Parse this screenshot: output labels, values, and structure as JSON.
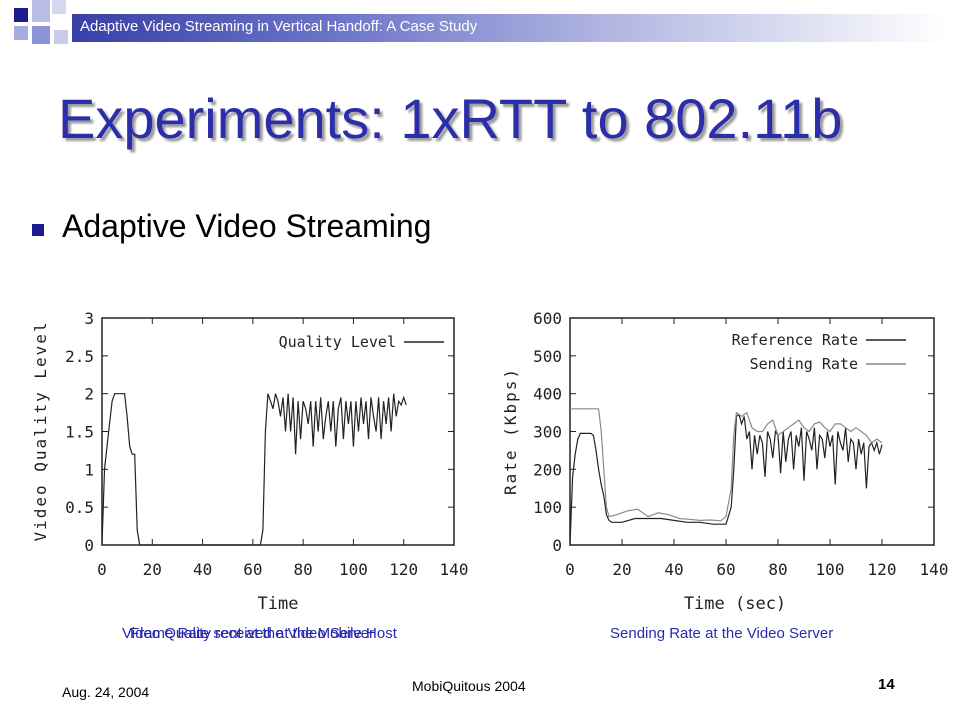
{
  "header": {
    "title": "Adaptive Video Streaming in Vertical Handoff: A Case Study"
  },
  "slide": {
    "title": "Experiments: 1xRTT to 802.11b",
    "bullet": "Adaptive Video Streaming",
    "caption_left_a": "Video Quality received at the Mobile Host",
    "caption_left_b": "Frame Rate sent at the Video Server",
    "caption_right": "Sending Rate at the Video Server"
  },
  "footer": {
    "date": "Aug. 24,  2004",
    "center": "MobiQuitous 2004",
    "page": "14"
  },
  "chart_data": [
    {
      "type": "line",
      "xlabel": "Time",
      "ylabel": "Video Quality Level",
      "xlim": [
        0,
        140
      ],
      "ylim": [
        0,
        3
      ],
      "xticks": [
        "0",
        "20",
        "40",
        "60",
        "80",
        "100",
        "120",
        "140"
      ],
      "yticks": [
        "0",
        "0.5",
        "1",
        "1.5",
        "2",
        "2.5",
        "3"
      ],
      "legend_position": "top-right",
      "series": [
        {
          "name": "Quality Level",
          "color": "#222222",
          "x": [
            0,
            1,
            2,
            3,
            4,
            5,
            6,
            7,
            8,
            9,
            10,
            11,
            12,
            13,
            14,
            15,
            16,
            63,
            64,
            65,
            66,
            67,
            68,
            69,
            70,
            71,
            72,
            73,
            74,
            75,
            76,
            77,
            78,
            79,
            80,
            81,
            82,
            83,
            84,
            85,
            86,
            87,
            88,
            89,
            90,
            91,
            92,
            93,
            94,
            95,
            96,
            97,
            98,
            99,
            100,
            101,
            102,
            103,
            104,
            105,
            106,
            107,
            108,
            109,
            110,
            111,
            112,
            113,
            114,
            115,
            116,
            117,
            118,
            119,
            120,
            121
          ],
          "y": [
            0,
            1,
            1.3,
            1.6,
            1.9,
            2,
            2,
            2,
            2,
            2,
            1.7,
            1.3,
            1.2,
            1.2,
            0.2,
            0,
            0,
            0,
            0.2,
            1.5,
            2,
            1.9,
            1.8,
            2,
            1.9,
            1.7,
            1.95,
            1.5,
            2,
            1.5,
            1.95,
            1.2,
            1.9,
            1.4,
            1.9,
            1.8,
            1.6,
            1.9,
            1.3,
            1.9,
            1.5,
            1.95,
            1.4,
            1.7,
            1.9,
            1.5,
            1.9,
            1.3,
            1.8,
            1.95,
            1.4,
            1.9,
            1.6,
            1.9,
            1.3,
            1.9,
            1.5,
            1.95,
            1.6,
            1.9,
            1.4,
            1.95,
            1.7,
            1.5,
            1.95,
            1.4,
            1.9,
            1.6,
            1.95,
            1.5,
            2,
            1.7,
            1.9,
            1.85,
            1.95,
            1.85
          ]
        }
      ]
    },
    {
      "type": "line",
      "xlabel": "Time (sec)",
      "ylabel": "Rate (Kbps)",
      "xlim": [
        0,
        140
      ],
      "ylim": [
        0,
        600
      ],
      "xticks": [
        "0",
        "20",
        "40",
        "60",
        "80",
        "100",
        "120",
        "140"
      ],
      "yticks": [
        "0",
        "100",
        "200",
        "300",
        "400",
        "500",
        "600"
      ],
      "legend_position": "top-right",
      "series": [
        {
          "name": "Reference Rate",
          "color": "#222222",
          "x": [
            0,
            1,
            2,
            3,
            4,
            5,
            6,
            7,
            8,
            9,
            10,
            11,
            12,
            13,
            14,
            15,
            16,
            20,
            25,
            30,
            35,
            40,
            45,
            50,
            55,
            60,
            62,
            63,
            64,
            65,
            66,
            67,
            68,
            69,
            70,
            71,
            72,
            73,
            74,
            75,
            76,
            77,
            78,
            79,
            80,
            81,
            82,
            83,
            84,
            85,
            86,
            87,
            88,
            89,
            90,
            91,
            92,
            93,
            94,
            95,
            96,
            97,
            98,
            99,
            100,
            101,
            102,
            103,
            104,
            105,
            106,
            107,
            108,
            109,
            110,
            111,
            112,
            113,
            114,
            115,
            116,
            117,
            118,
            119,
            120
          ],
          "y": [
            0,
            180,
            240,
            280,
            295,
            295,
            295,
            295,
            295,
            290,
            250,
            200,
            160,
            130,
            80,
            65,
            60,
            60,
            70,
            70,
            70,
            65,
            60,
            60,
            55,
            55,
            100,
            200,
            340,
            345,
            320,
            340,
            280,
            300,
            200,
            290,
            240,
            290,
            270,
            180,
            300,
            280,
            230,
            300,
            290,
            190,
            300,
            220,
            280,
            300,
            200,
            290,
            260,
            310,
            170,
            300,
            280,
            250,
            310,
            200,
            290,
            280,
            230,
            300,
            260,
            290,
            160,
            300,
            270,
            250,
            310,
            220,
            280,
            270,
            200,
            280,
            240,
            270,
            150,
            260,
            270,
            250,
            270,
            240,
            265
          ]
        },
        {
          "name": "Sending Rate",
          "color": "#8a8a8a",
          "x": [
            0,
            1,
            4,
            8,
            11,
            12,
            13,
            14,
            15,
            18,
            22,
            26,
            30,
            34,
            38,
            42,
            46,
            50,
            54,
            58,
            60,
            62,
            63,
            64,
            66,
            68,
            70,
            72,
            74,
            76,
            78,
            80,
            82,
            84,
            86,
            88,
            90,
            92,
            94,
            96,
            98,
            100,
            102,
            104,
            106,
            108,
            110,
            112,
            114,
            116,
            118,
            120
          ],
          "y": [
            360,
            360,
            360,
            360,
            360,
            300,
            200,
            100,
            75,
            80,
            90,
            95,
            75,
            85,
            80,
            70,
            68,
            65,
            66,
            64,
            75,
            150,
            290,
            350,
            340,
            350,
            310,
            300,
            300,
            320,
            330,
            290,
            300,
            310,
            320,
            330,
            310,
            300,
            320,
            325,
            310,
            300,
            320,
            320,
            310,
            300,
            310,
            300,
            290,
            270,
            280,
            270
          ]
        }
      ]
    }
  ]
}
